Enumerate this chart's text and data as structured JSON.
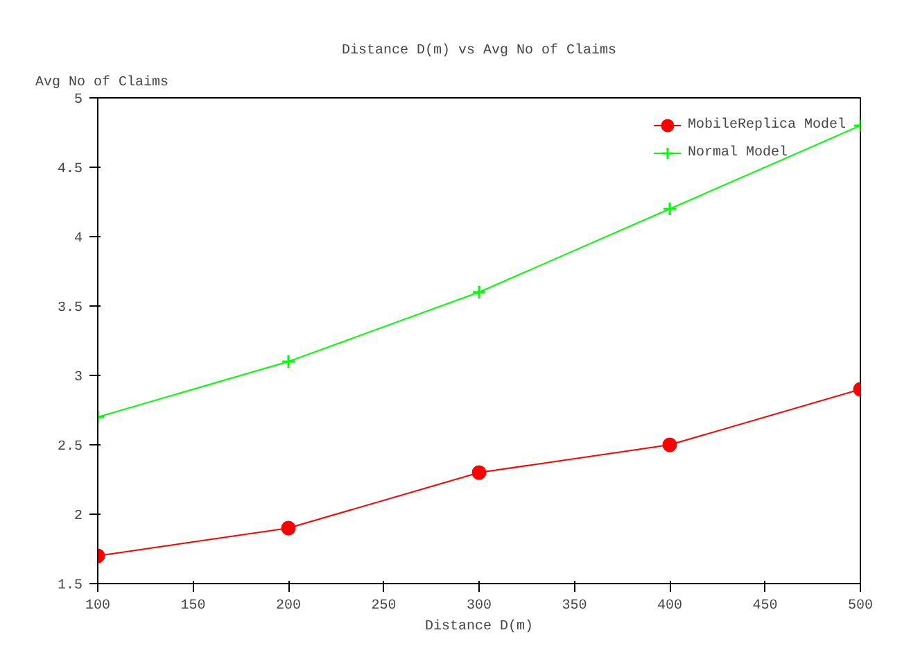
{
  "chart_data": {
    "type": "line",
    "title": "Distance D(m) vs Avg No of Claims",
    "xlabel": "Distance D(m)",
    "ylabel": "Avg No of Claims",
    "x": [
      100,
      200,
      300,
      400,
      500
    ],
    "series": [
      {
        "name": "MobileReplica Model",
        "color": "#ff0000",
        "marker": "circle",
        "values": [
          1.7,
          1.9,
          2.3,
          2.5,
          2.9
        ]
      },
      {
        "name": "Normal Model",
        "color": "#00ff00",
        "marker": "cross",
        "values": [
          2.7,
          3.1,
          3.6,
          4.2,
          4.8
        ]
      }
    ],
    "xlim": [
      100,
      500
    ],
    "xticks": [
      100,
      150,
      200,
      250,
      300,
      350,
      400,
      450,
      500
    ],
    "ylim": [
      1.5,
      5
    ],
    "yticks": [
      1.5,
      2,
      2.5,
      3,
      3.5,
      4,
      4.5,
      5
    ],
    "grid": false,
    "legend": "top right",
    "line_style": "solid"
  }
}
